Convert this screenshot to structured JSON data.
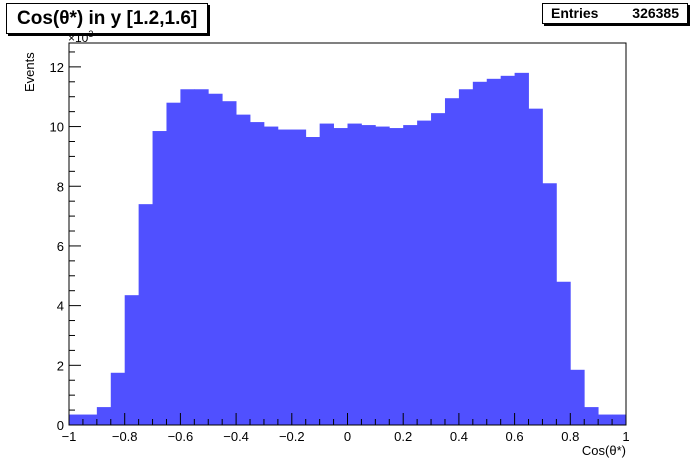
{
  "title": "Cos(θ*) in y [1.2,1.6]",
  "stats": {
    "label": "Entries",
    "value": "326385"
  },
  "chart_data": {
    "type": "bar",
    "title": "Cos(θ*) in y [1.2,1.6]",
    "xlabel": "Cos(θ*)",
    "ylabel": "Events",
    "y_multiplier": {
      "base": "×10",
      "exponent": "3"
    },
    "xlim": [
      -1,
      1
    ],
    "ylim": [
      0,
      12.8
    ],
    "bin_width": 0.05,
    "x_ticks": [
      -1,
      -0.8,
      -0.6,
      -0.4,
      -0.2,
      0,
      0.2,
      0.4,
      0.6,
      0.8,
      1
    ],
    "x_tick_labels": [
      "−1",
      "−0.8",
      "−0.6",
      "−0.4",
      "−0.2",
      "0",
      "0.2",
      "0.4",
      "0.6",
      "0.8",
      "1"
    ],
    "y_ticks": [
      0,
      2,
      4,
      6,
      8,
      10,
      12
    ],
    "y_tick_labels": [
      "0",
      "2",
      "4",
      "6",
      "8",
      "10",
      "12"
    ],
    "bar_color": "#5050ff",
    "bins_low_edge": [
      -1.0,
      -0.95,
      -0.9,
      -0.85,
      -0.8,
      -0.75,
      -0.7,
      -0.65,
      -0.6,
      -0.55,
      -0.5,
      -0.45,
      -0.4,
      -0.35,
      -0.3,
      -0.25,
      -0.2,
      -0.15,
      -0.1,
      -0.05,
      0.0,
      0.05,
      0.1,
      0.15,
      0.2,
      0.25,
      0.3,
      0.35,
      0.4,
      0.45,
      0.5,
      0.55,
      0.6,
      0.65,
      0.7,
      0.75,
      0.8,
      0.85,
      0.9,
      0.95
    ],
    "values": [
      0.35,
      0.35,
      0.6,
      1.75,
      4.35,
      7.4,
      9.85,
      10.8,
      11.25,
      11.25,
      11.1,
      10.85,
      10.4,
      10.15,
      10.0,
      9.9,
      9.9,
      9.65,
      10.1,
      9.95,
      10.1,
      10.05,
      10.0,
      9.95,
      10.05,
      10.2,
      10.45,
      10.95,
      11.25,
      11.5,
      11.6,
      11.7,
      11.8,
      10.6,
      8.1,
      4.8,
      1.85,
      0.6,
      0.35,
      0.35
    ]
  }
}
